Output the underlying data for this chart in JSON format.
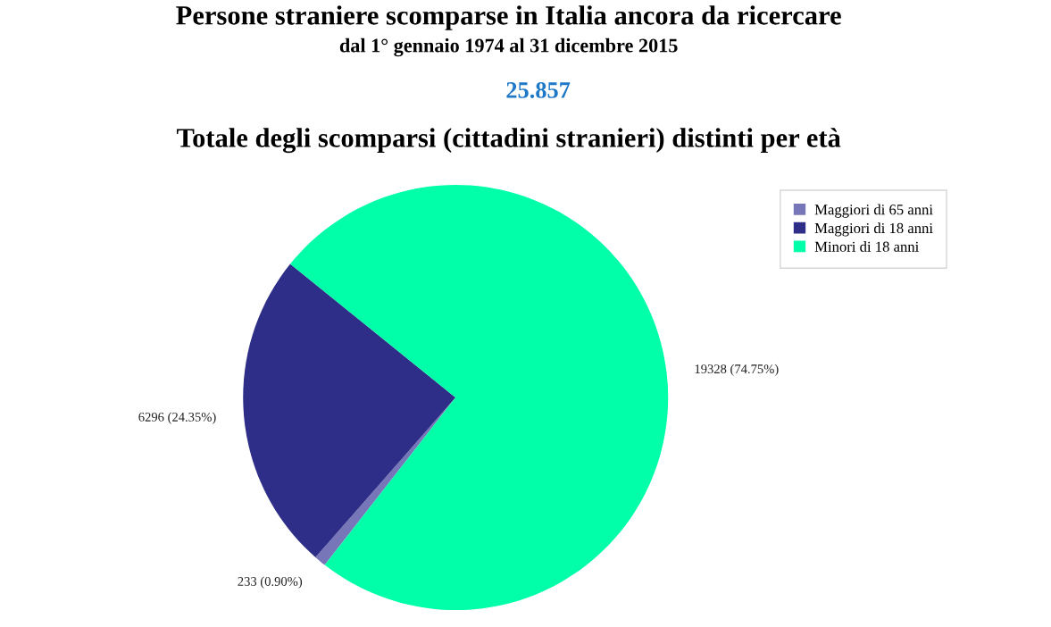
{
  "chart_data": {
    "type": "pie",
    "title": "Persone straniere scomparse in Italia ancora da ricercare",
    "subtitle": "dal 1° gennaio 1974 al 31 dicembre 2015",
    "annotations": [
      "25.857",
      "Totale degli scomparsi (cittadini stranieri) distinti per età"
    ],
    "categories": [
      "Maggiori di 65 anni",
      "Maggiori di 18 anni",
      "Minori di 18 anni"
    ],
    "values": [
      233,
      6296,
      19328
    ],
    "value_labels": [
      "233 (0.90%)",
      "6296 (24.35%)",
      "19328 (74.75%)"
    ],
    "colors": [
      "#7676b8",
      "#2e2e88",
      "#00ffa8"
    ],
    "legend": "top right"
  }
}
